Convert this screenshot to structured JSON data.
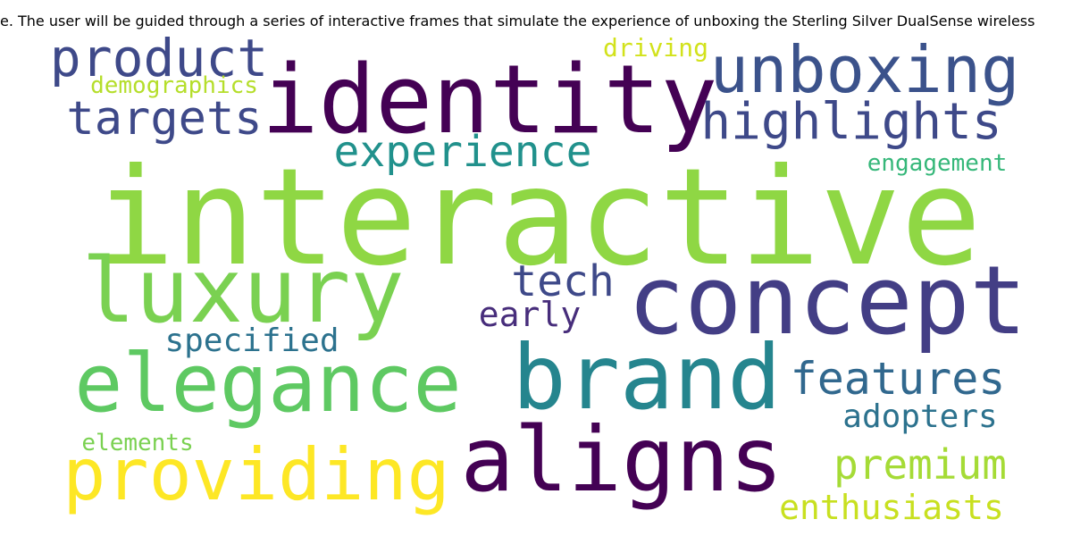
{
  "title": "e. The user will be guided through a series of interactive frames that simulate the experience of unboxing the Sterling Silver DualSense wireless",
  "words": [
    {
      "text": "interactive",
      "color": "#8fd744"
    },
    {
      "text": "identity",
      "color": "#440154"
    },
    {
      "text": "concept",
      "color": "#433e85"
    },
    {
      "text": "brand",
      "color": "#25858e"
    },
    {
      "text": "aligns",
      "color": "#440154"
    },
    {
      "text": "elegance",
      "color": "#5ec962"
    },
    {
      "text": "luxury",
      "color": "#7ad151"
    },
    {
      "text": "providing",
      "color": "#fde725"
    },
    {
      "text": "unboxing",
      "color": "#3b528b"
    },
    {
      "text": "highlights",
      "color": "#3e4989"
    },
    {
      "text": "product",
      "color": "#3e4989"
    },
    {
      "text": "targets",
      "color": "#3e4989"
    },
    {
      "text": "experience",
      "color": "#21918c"
    },
    {
      "text": "features",
      "color": "#31688e"
    },
    {
      "text": "tech",
      "color": "#3e4989"
    },
    {
      "text": "premium",
      "color": "#a5db36"
    },
    {
      "text": "early",
      "color": "#472d7b"
    },
    {
      "text": "specified",
      "color": "#2c728e"
    },
    {
      "text": "adopters",
      "color": "#2c728e"
    },
    {
      "text": "enthusiasts",
      "color": "#c8e020"
    },
    {
      "text": "demographics",
      "color": "#b5de2b"
    },
    {
      "text": "driving",
      "color": "#d2e21b"
    },
    {
      "text": "engagement",
      "color": "#35b779"
    },
    {
      "text": "elements",
      "color": "#7ad151"
    }
  ]
}
